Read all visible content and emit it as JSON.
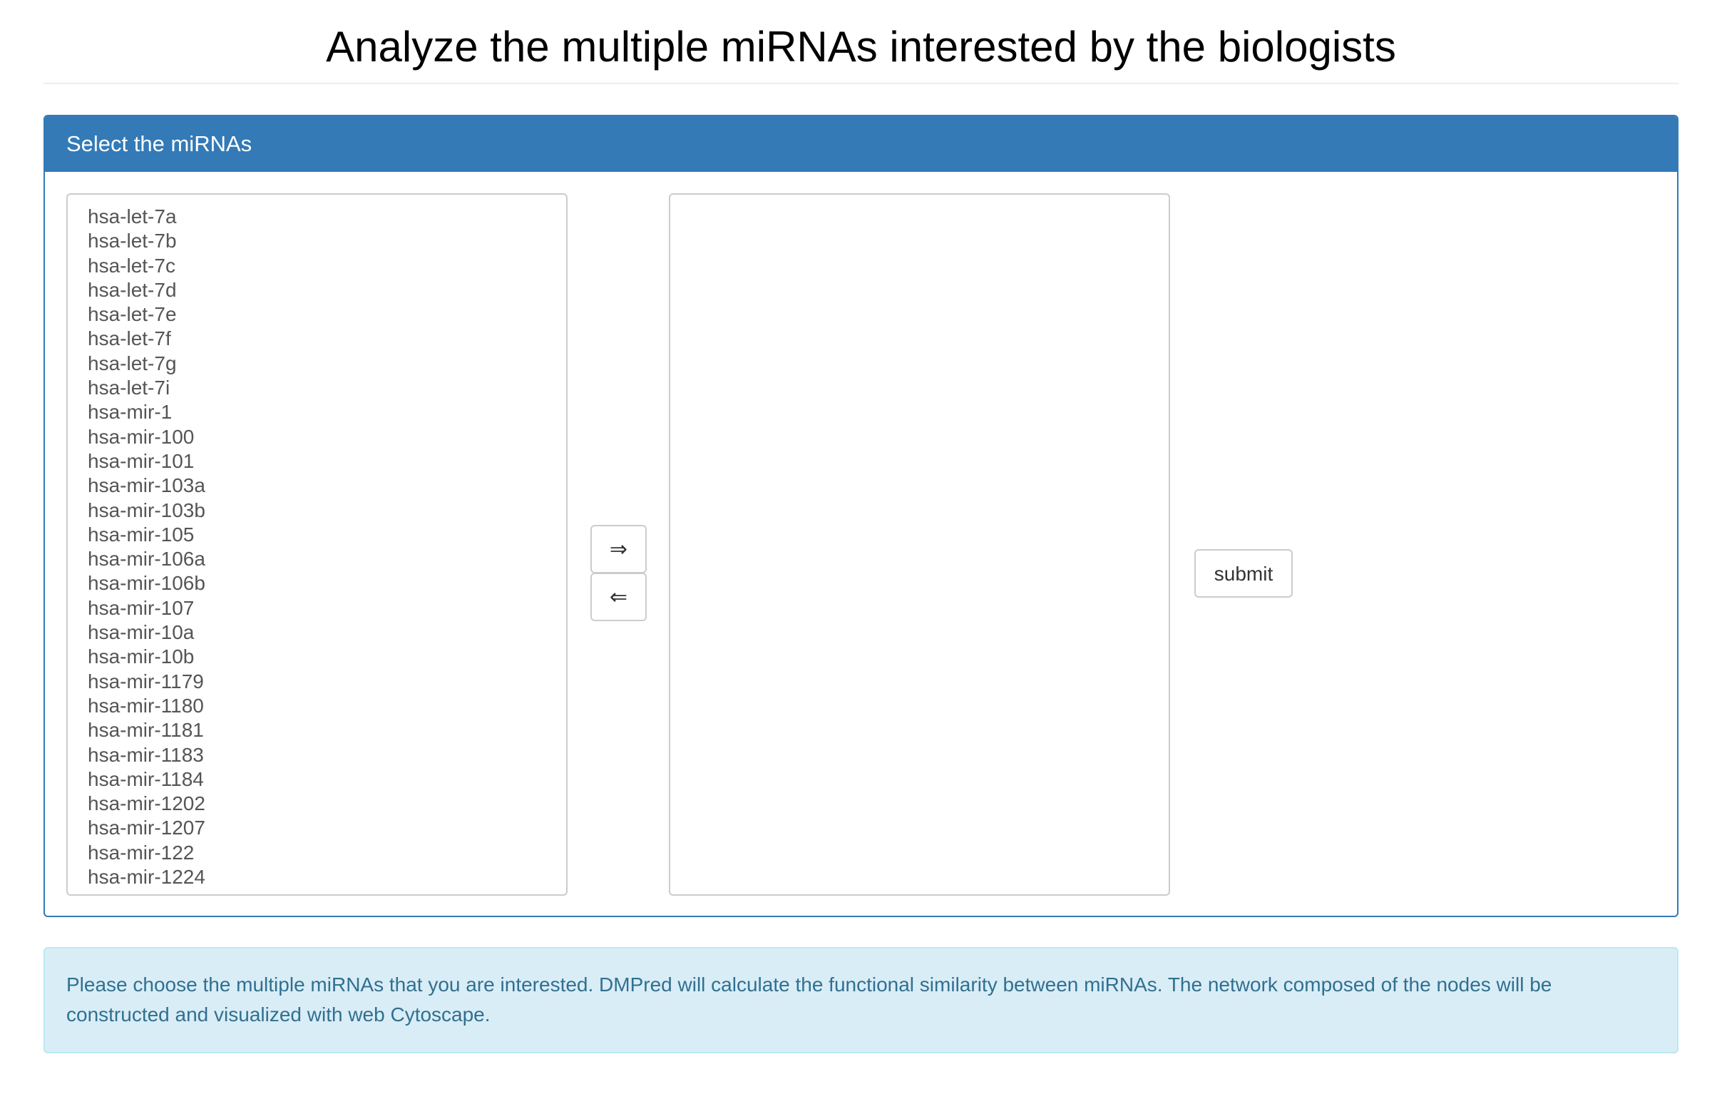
{
  "header": {
    "title": "Analyze the multiple miRNAs interested by the biologists"
  },
  "panel": {
    "heading": "Select the miRNAs",
    "available_list": [
      "hsa-let-7a",
      "hsa-let-7b",
      "hsa-let-7c",
      "hsa-let-7d",
      "hsa-let-7e",
      "hsa-let-7f",
      "hsa-let-7g",
      "hsa-let-7i",
      "hsa-mir-1",
      "hsa-mir-100",
      "hsa-mir-101",
      "hsa-mir-103a",
      "hsa-mir-103b",
      "hsa-mir-105",
      "hsa-mir-106a",
      "hsa-mir-106b",
      "hsa-mir-107",
      "hsa-mir-10a",
      "hsa-mir-10b",
      "hsa-mir-1179",
      "hsa-mir-1180",
      "hsa-mir-1181",
      "hsa-mir-1183",
      "hsa-mir-1184",
      "hsa-mir-1202",
      "hsa-mir-1207",
      "hsa-mir-122",
      "hsa-mir-1224"
    ],
    "selected_list": [],
    "add_button_label": "⇒",
    "remove_button_label": "⇐",
    "submit_label": "submit"
  },
  "info": {
    "text": "Please choose the multiple miRNAs that you are interested. DMPred will calculate the functional similarity between miRNAs. The network composed of the nodes will be constructed and visualized with web Cytoscape."
  },
  "colors": {
    "primary": "#337ab7",
    "info_bg": "#d9edf7",
    "info_text": "#31708f"
  }
}
